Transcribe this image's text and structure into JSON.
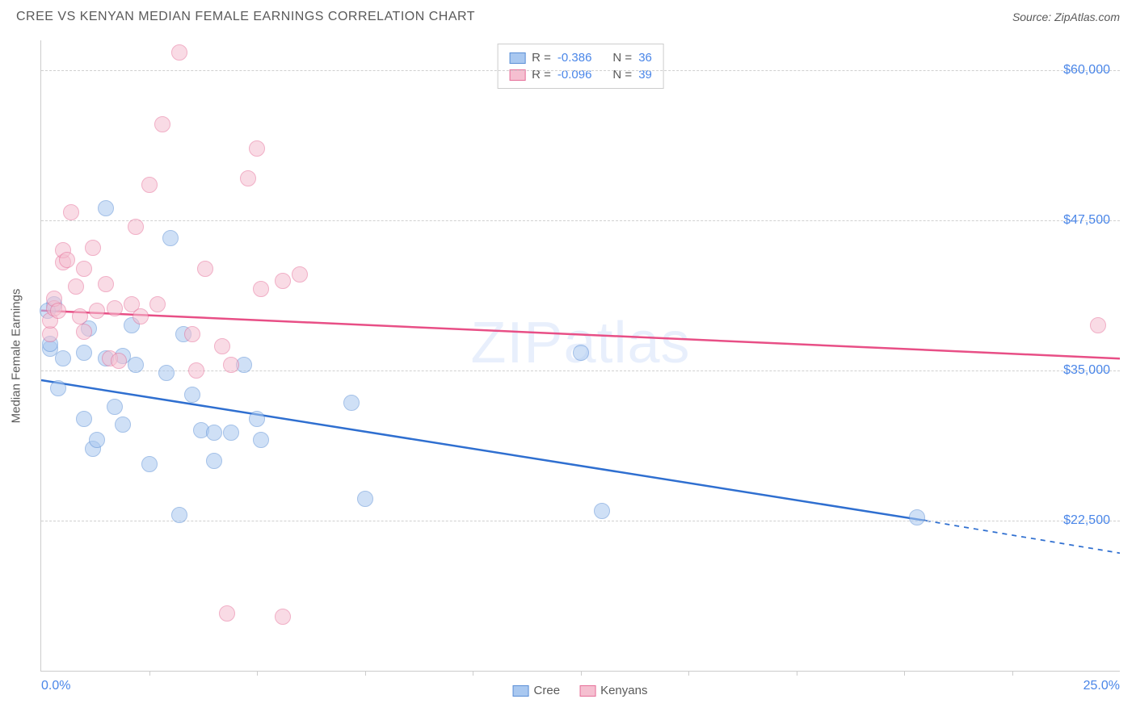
{
  "header": {
    "title": "CREE VS KENYAN MEDIAN FEMALE EARNINGS CORRELATION CHART",
    "source": "Source: ZipAtlas.com"
  },
  "watermark": {
    "prefix": "ZIP",
    "suffix": "atlas"
  },
  "chart": {
    "type": "scatter",
    "ylabel": "Median Female Earnings",
    "xlim": [
      0,
      25
    ],
    "ylim": [
      10000,
      62500
    ],
    "x_axis_min_label": "0.0%",
    "x_axis_max_label": "25.0%",
    "y_ticks": [
      22500,
      35000,
      47500,
      60000
    ],
    "y_tick_labels": [
      "$22,500",
      "$35,000",
      "$47,500",
      "$60,000"
    ],
    "x_minor_ticks": [
      2.5,
      5,
      7.5,
      10,
      12.5,
      15,
      17.5,
      20,
      22.5
    ],
    "grid_color": "#d0d0d0",
    "axis_color": "#cccccc",
    "background_color": "#ffffff",
    "label_fontsize": 15,
    "tick_fontsize": 16,
    "tick_color": "#4a86e8",
    "marker_radius": 10,
    "marker_opacity": 0.55,
    "line_width": 2.5,
    "series": [
      {
        "name": "Cree",
        "color_fill": "#a9c8f0",
        "color_stroke": "#5b8fd6",
        "line_color": "#2f6fd0",
        "R": "-0.386",
        "N": "36",
        "trend": {
          "x1": 0,
          "y1": 34200,
          "x2": 20.5,
          "y2": 22500,
          "dash_x2": 25,
          "dash_y2": 19800
        },
        "points": [
          [
            0.2,
            36800
          ],
          [
            0.2,
            37200
          ],
          [
            0.3,
            40500
          ],
          [
            0.4,
            33500
          ],
          [
            0.5,
            36000
          ],
          [
            1.0,
            31000
          ],
          [
            1.0,
            36500
          ],
          [
            1.1,
            38500
          ],
          [
            1.2,
            28500
          ],
          [
            1.3,
            29200
          ],
          [
            1.5,
            48500
          ],
          [
            1.5,
            36000
          ],
          [
            1.7,
            32000
          ],
          [
            1.9,
            36200
          ],
          [
            1.9,
            30500
          ],
          [
            2.1,
            38800
          ],
          [
            2.2,
            35500
          ],
          [
            2.5,
            27200
          ],
          [
            2.9,
            34800
          ],
          [
            3.0,
            46000
          ],
          [
            3.2,
            23000
          ],
          [
            3.3,
            38000
          ],
          [
            3.5,
            33000
          ],
          [
            3.7,
            30000
          ],
          [
            4.0,
            27500
          ],
          [
            4.0,
            29800
          ],
          [
            4.4,
            29800
          ],
          [
            4.7,
            35500
          ],
          [
            5.0,
            31000
          ],
          [
            5.1,
            29200
          ],
          [
            7.2,
            32300
          ],
          [
            7.5,
            24300
          ],
          [
            12.5,
            36500
          ],
          [
            13.0,
            23300
          ],
          [
            20.3,
            22800
          ],
          [
            0.15,
            40000
          ]
        ]
      },
      {
        "name": "Kenyans",
        "color_fill": "#f5bfd0",
        "color_stroke": "#e66f99",
        "line_color": "#e84f86",
        "R": "-0.096",
        "N": "39",
        "trend": {
          "x1": 0,
          "y1": 40000,
          "x2": 25,
          "y2": 36000
        },
        "points": [
          [
            0.2,
            38000
          ],
          [
            0.2,
            39200
          ],
          [
            0.3,
            40200
          ],
          [
            0.3,
            41000
          ],
          [
            0.4,
            40000
          ],
          [
            0.5,
            44000
          ],
          [
            0.5,
            45000
          ],
          [
            0.6,
            44200
          ],
          [
            0.7,
            48200
          ],
          [
            0.8,
            42000
          ],
          [
            0.9,
            39500
          ],
          [
            1.0,
            38200
          ],
          [
            1.0,
            43500
          ],
          [
            1.2,
            45200
          ],
          [
            1.3,
            40000
          ],
          [
            1.5,
            42200
          ],
          [
            1.6,
            36000
          ],
          [
            1.7,
            40200
          ],
          [
            1.8,
            35800
          ],
          [
            2.1,
            40500
          ],
          [
            2.2,
            47000
          ],
          [
            2.3,
            39500
          ],
          [
            2.5,
            50500
          ],
          [
            2.7,
            40500
          ],
          [
            2.8,
            55500
          ],
          [
            3.2,
            61500
          ],
          [
            3.5,
            38000
          ],
          [
            3.6,
            35000
          ],
          [
            3.8,
            43500
          ],
          [
            4.2,
            37000
          ],
          [
            4.4,
            35500
          ],
          [
            4.8,
            51000
          ],
          [
            5.0,
            53500
          ],
          [
            5.1,
            41800
          ],
          [
            5.6,
            42500
          ],
          [
            6.0,
            43000
          ],
          [
            4.3,
            14800
          ],
          [
            5.6,
            14500
          ],
          [
            24.5,
            38800
          ]
        ]
      }
    ]
  },
  "legend_top": {
    "rows": [
      {
        "series_index": 0,
        "r_label": "R =",
        "n_label": "N ="
      },
      {
        "series_index": 1,
        "r_label": "R =",
        "n_label": "N ="
      }
    ]
  },
  "legend_bottom": {
    "items": [
      {
        "series_index": 0
      },
      {
        "series_index": 1
      }
    ]
  }
}
